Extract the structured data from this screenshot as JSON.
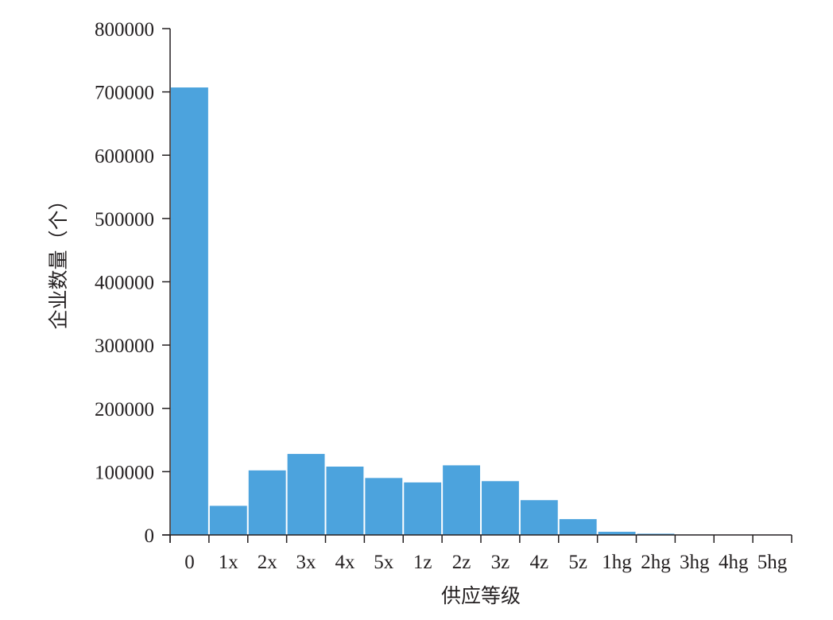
{
  "chart_data": {
    "type": "bar",
    "title": "",
    "xlabel": "供应等级",
    "ylabel": "企业数量（个）",
    "categories": [
      "0",
      "1x",
      "2x",
      "3x",
      "4x",
      "5x",
      "1z",
      "2z",
      "3z",
      "4z",
      "5z",
      "1hg",
      "2hg",
      "3hg",
      "4hg",
      "5hg"
    ],
    "values": [
      707000,
      46000,
      102000,
      128000,
      108000,
      90000,
      83000,
      110000,
      85000,
      55000,
      25000,
      5000,
      2000,
      700,
      300,
      100
    ],
    "ylim": [
      0,
      800000
    ],
    "yticks": [
      "0",
      "100000",
      "200000",
      "300000",
      "400000",
      "500000",
      "600000",
      "700000",
      "800000"
    ],
    "bar_color": "#4ca3dd",
    "axis_color": "#231f20",
    "grid": false,
    "legend": "none"
  }
}
